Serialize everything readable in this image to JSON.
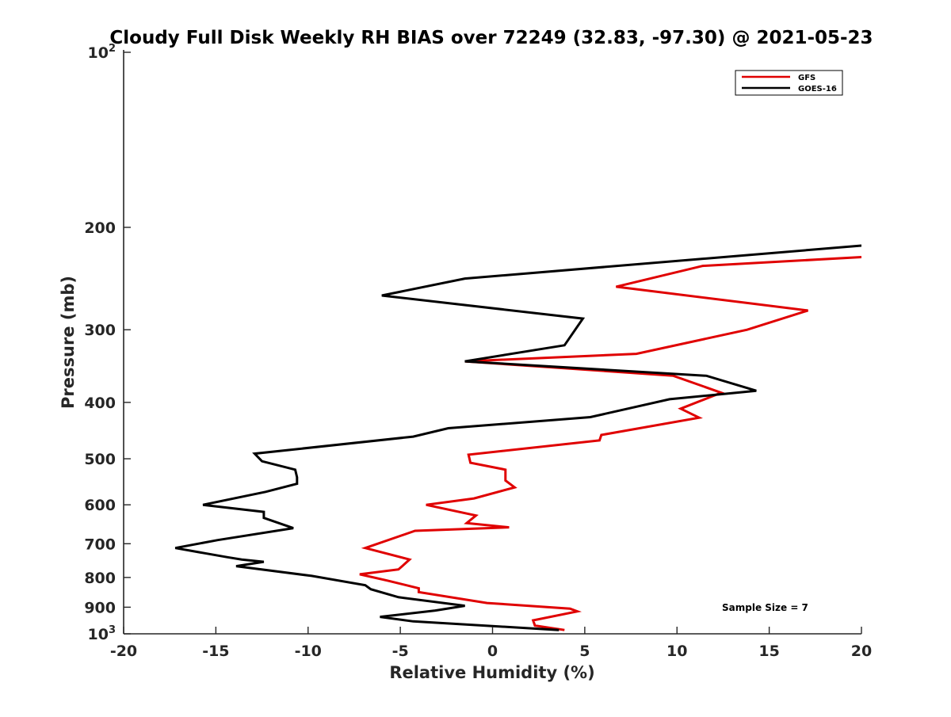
{
  "chart_data": {
    "type": "line",
    "title": "Cloudy Full Disk Weekly RH BIAS over 72249 (32.83, -97.30) @ 2021-05-23",
    "xlabel": "Relative Humidity (%)",
    "ylabel": "Pressure (mb)",
    "xlim": [
      -20,
      20
    ],
    "ylim": [
      100,
      1000
    ],
    "yscale": "log",
    "y_reversed": true,
    "grid": false,
    "legend_position": "top-right",
    "xticks": [
      -20,
      -15,
      -10,
      -5,
      0,
      5,
      10,
      15,
      20
    ],
    "xtick_labels": [
      "-20",
      "-15",
      "-10",
      "-5",
      "0",
      "5",
      "10",
      "15",
      "20"
    ],
    "yticks": [
      100,
      200,
      300,
      400,
      500,
      600,
      700,
      800,
      900,
      1000
    ],
    "ytick_labels": [
      {
        "base": "10",
        "exp": "2"
      },
      {
        "base": "200",
        "exp": ""
      },
      {
        "base": "300",
        "exp": ""
      },
      {
        "base": "400",
        "exp": ""
      },
      {
        "base": "500",
        "exp": ""
      },
      {
        "base": "600",
        "exp": ""
      },
      {
        "base": "700",
        "exp": ""
      },
      {
        "base": "800",
        "exp": ""
      },
      {
        "base": "900",
        "exp": ""
      },
      {
        "base": "10",
        "exp": "3"
      }
    ],
    "annotation": "Sample Size = 7",
    "series": [
      {
        "name": "GFS",
        "color": "#e00000",
        "x": [
          3.9,
          2.3,
          2.2,
          4.6,
          4.2,
          -0.3,
          -4.0,
          -4.0,
          -5.7,
          -7.2,
          -5.1,
          -4.9,
          -4.5,
          -6.9,
          -4.2,
          0.9,
          -1.4,
          -0.9,
          -3.6,
          -1.0,
          1.2,
          0.7,
          0.7,
          -1.2,
          -1.3,
          5.8,
          5.9,
          11.2,
          10.2,
          12.4,
          9.8,
          -1.5,
          7.8,
          13.8,
          17.1,
          6.7,
          11.4,
          20.0
        ],
        "y": [
          985,
          968,
          948,
          915,
          905,
          885,
          848,
          835,
          810,
          790,
          775,
          765,
          745,
          712,
          665,
          656,
          645,
          626,
          600,
          585,
          560,
          545,
          522,
          508,
          492,
          465,
          455,
          425,
          410,
          385,
          360,
          340,
          330,
          300,
          278,
          253,
          233,
          225
        ]
      },
      {
        "name": "GOES-16",
        "color": "#000000",
        "x": [
          3.6,
          -4.3,
          -6.1,
          -3.1,
          -1.5,
          -5.1,
          -6.6,
          -6.9,
          -9.8,
          -13.9,
          -12.4,
          -13.6,
          -14.4,
          -17.2,
          -14.9,
          -10.8,
          -12.4,
          -12.4,
          -15.7,
          -12.3,
          -10.6,
          -10.6,
          -10.7,
          -12.5,
          -12.9,
          -4.3,
          -2.4,
          5.3,
          9.6,
          14.3,
          11.6,
          -1.5,
          3.9,
          4.9,
          -6.0,
          -1.5,
          20.0
        ],
        "y": [
          985,
          952,
          935,
          912,
          895,
          865,
          838,
          825,
          795,
          765,
          752,
          745,
          738,
          712,
          690,
          658,
          632,
          617,
          600,
          570,
          552,
          538,
          522,
          505,
          490,
          458,
          443,
          424,
          395,
          382,
          360,
          340,
          319,
          287,
          262,
          245,
          215
        ]
      }
    ]
  },
  "ui": {
    "legend_gfs": "GFS",
    "legend_goes": "GOES-16"
  }
}
